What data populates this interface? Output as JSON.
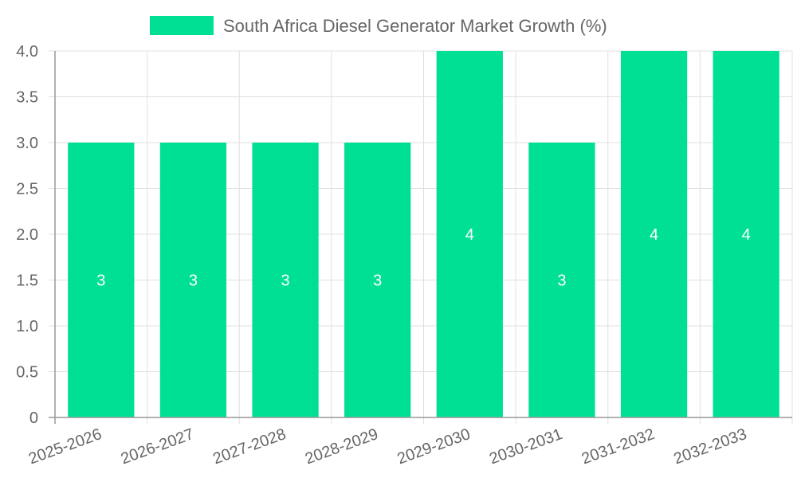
{
  "chart_data": {
    "type": "bar",
    "categories": [
      "2025-2026",
      "2026-2027",
      "2027-2028",
      "2028-2029",
      "2029-2030",
      "2030-2031",
      "2031-2032",
      "2032-2033"
    ],
    "series": [
      {
        "name": "South Africa Diesel Generator Market Growth (%)",
        "values": [
          3,
          3,
          3,
          3,
          4,
          3,
          4,
          4
        ],
        "color": "#00e094"
      }
    ],
    "data_labels": [
      "3",
      "3",
      "3",
      "3",
      "4",
      "3",
      "4",
      "4"
    ],
    "ylim": [
      0,
      4.0
    ],
    "y_ticks": [
      "0",
      "0.5",
      "1.0",
      "1.5",
      "2.0",
      "2.5",
      "3.0",
      "3.5",
      "4.0"
    ],
    "grid": true,
    "legend_position": "top",
    "colors": {
      "grid": "#e0e0e0",
      "axis": "#999999",
      "text": "#666666",
      "label": "#ffffff"
    }
  }
}
